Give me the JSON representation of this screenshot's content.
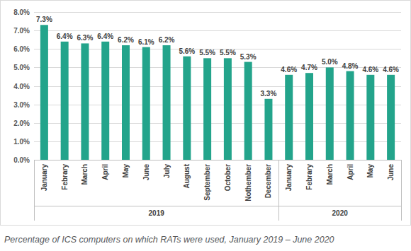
{
  "chart_data": {
    "type": "bar",
    "title": "Percentage of ICS computers on which RATs were used, January 2019 – June 2020",
    "categories": [
      "January",
      "Febrary",
      "March",
      "April",
      "May",
      "June",
      "July",
      "August",
      "September",
      "October",
      "Nothember",
      "December",
      "January",
      "Febrary",
      "March",
      "April",
      "May",
      "June"
    ],
    "groups": [
      {
        "name": "2019",
        "size": 12
      },
      {
        "name": "2020",
        "size": 6
      }
    ],
    "values": [
      7.3,
      6.4,
      6.3,
      6.4,
      6.2,
      6.1,
      6.2,
      5.6,
      5.5,
      5.5,
      5.3,
      3.3,
      4.6,
      4.7,
      5.0,
      4.8,
      4.6,
      4.6
    ],
    "value_labels": [
      "7.3%",
      "6.4%",
      "6.3%",
      "6.4%",
      "6.2%",
      "6.1%",
      "6.2%",
      "5.6%",
      "5.5%",
      "5.5%",
      "5.3%",
      "3.3%",
      "4.6%",
      "4.7%",
      "5.0%",
      "4.8%",
      "4.6%",
      "4.6%"
    ],
    "color": "#23a48b",
    "ylim": [
      0,
      8
    ],
    "yticks": [
      {
        "value": 0,
        "label": "0.0%"
      },
      {
        "value": 1,
        "label": "1.0%"
      },
      {
        "value": 2,
        "label": "2.0%"
      },
      {
        "value": 3,
        "label": "3.0%"
      },
      {
        "value": 4,
        "label": "4.0%"
      },
      {
        "value": 5,
        "label": "5.0%"
      },
      {
        "value": 6,
        "label": "6.0%"
      },
      {
        "value": 7,
        "label": "7.0%"
      },
      {
        "value": 8,
        "label": "8.0%"
      }
    ],
    "grid": true,
    "data_labels": true
  }
}
